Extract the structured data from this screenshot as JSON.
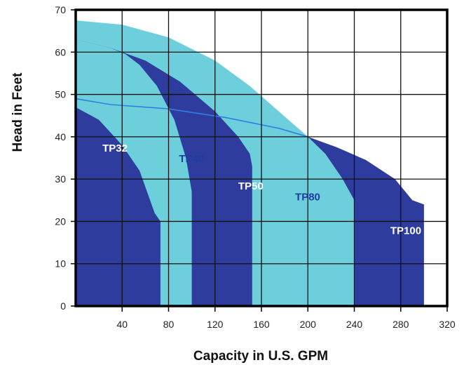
{
  "chart_data": {
    "type": "area",
    "title": "",
    "xlabel": "Capacity in U.S. GPM",
    "ylabel": "Head in Feet",
    "xlim": [
      0,
      320
    ],
    "ylim": [
      0,
      70
    ],
    "x_ticks": [
      40,
      80,
      120,
      160,
      200,
      240,
      280,
      320
    ],
    "y_ticks": [
      0,
      10,
      20,
      30,
      40,
      50,
      60,
      70
    ],
    "grid": true,
    "colors": {
      "light": "#6dcfdc",
      "dark": "#2e3c9e",
      "line": "#2f7fe0",
      "grid": "#111111"
    },
    "series": [
      {
        "name": "TP100",
        "color": "dark",
        "label_color": "#ffffff",
        "label_at": [
          271,
          17
        ],
        "points": [
          [
            0,
            49
          ],
          [
            30,
            47.6
          ],
          [
            80,
            46.6
          ],
          [
            130,
            44.5
          ],
          [
            175,
            42
          ],
          [
            200,
            40
          ],
          [
            225,
            37.5
          ],
          [
            250,
            34.5
          ],
          [
            275,
            30
          ],
          [
            290,
            25
          ],
          [
            300,
            24
          ],
          [
            300,
            0
          ],
          [
            0,
            0
          ]
        ]
      },
      {
        "name": "TP80",
        "color": "light",
        "label_color": "#1e3c9e",
        "label_at": [
          189,
          25
        ],
        "points": [
          [
            0,
            67.5
          ],
          [
            40,
            66.5
          ],
          [
            80,
            63.5
          ],
          [
            120,
            58
          ],
          [
            150,
            52
          ],
          [
            175,
            46
          ],
          [
            200,
            40
          ],
          [
            215,
            36
          ],
          [
            230,
            30
          ],
          [
            240,
            25
          ],
          [
            240,
            0
          ],
          [
            0,
            0
          ]
        ]
      },
      {
        "name": "TP50",
        "color": "dark",
        "label_color": "#ffffff",
        "label_at": [
          140,
          27.5
        ],
        "points": [
          [
            0,
            63
          ],
          [
            30,
            61
          ],
          [
            60,
            58
          ],
          [
            90,
            53
          ],
          [
            120,
            46
          ],
          [
            140,
            40
          ],
          [
            150,
            36
          ],
          [
            152,
            33
          ],
          [
            152,
            0
          ],
          [
            0,
            0
          ]
        ]
      },
      {
        "name": "TP40",
        "color": "light",
        "label_color": "#1e3c9e",
        "label_at": [
          89,
          34
        ],
        "points": [
          [
            0,
            63
          ],
          [
            30,
            61
          ],
          [
            43,
            59.5
          ],
          [
            55,
            57
          ],
          [
            70,
            52
          ],
          [
            85,
            44
          ],
          [
            95,
            35
          ],
          [
            100,
            27
          ],
          [
            100,
            0
          ],
          [
            0,
            0
          ]
        ]
      },
      {
        "name": "TP32",
        "color": "dark",
        "label_color": "#ffffff",
        "label_at": [
          23,
          36.5
        ],
        "points": [
          [
            0,
            47
          ],
          [
            20,
            44
          ],
          [
            40,
            38
          ],
          [
            55,
            32
          ],
          [
            68,
            22
          ],
          [
            73,
            20
          ],
          [
            73,
            0
          ],
          [
            0,
            0
          ]
        ]
      }
    ]
  }
}
